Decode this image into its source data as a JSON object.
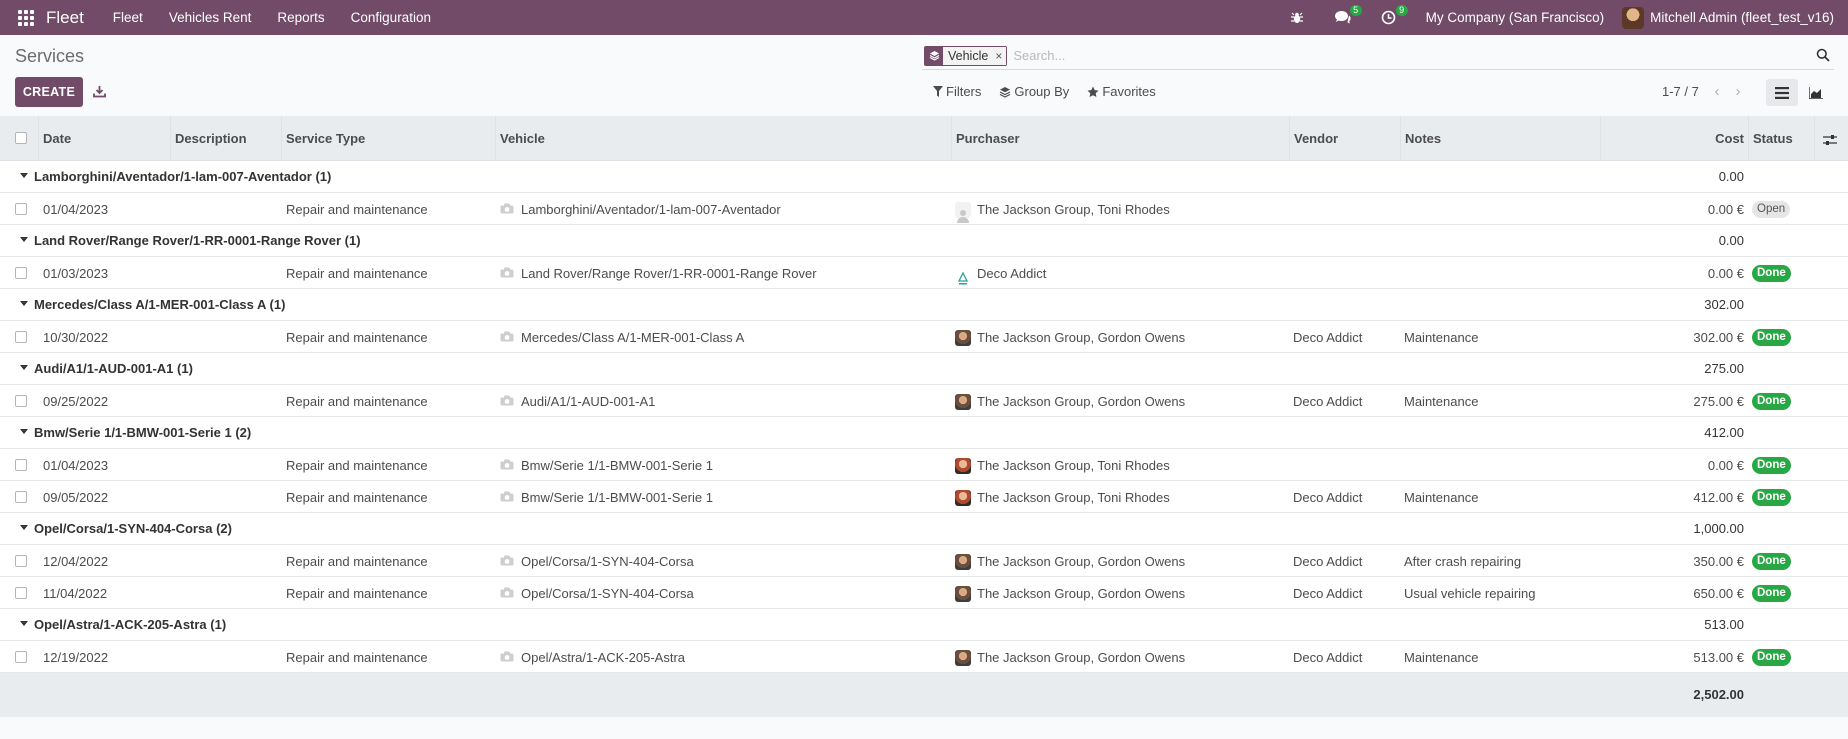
{
  "navbar": {
    "brand": "Fleet",
    "menu": [
      "Fleet",
      "Vehicles Rent",
      "Reports",
      "Configuration"
    ],
    "messages_count": "5",
    "activities_count": "9",
    "company": "My Company (San Francisco)",
    "user": "Mitchell Admin (fleet_test_v16)"
  },
  "control": {
    "title": "Services",
    "create_label": "CREATE",
    "facet_value": "Vehicle",
    "facet_remove": "×",
    "search_placeholder": "Search...",
    "filters_label": "Filters",
    "groupby_label": "Group By",
    "favorites_label": "Favorites",
    "pager": "1-7 / 7"
  },
  "columns": {
    "date": "Date",
    "description": "Description",
    "service_type": "Service Type",
    "vehicle": "Vehicle",
    "purchaser": "Purchaser",
    "vendor": "Vendor",
    "notes": "Notes",
    "cost": "Cost",
    "status": "Status"
  },
  "groups": [
    {
      "title": "Lamborghini/Aventador/1-lam-007-Aventador (1)",
      "total": "0.00",
      "rows": [
        {
          "date": "01/04/2023",
          "description": "",
          "service_type": "Repair and maintenance",
          "vehicle": "Lamborghini/Aventador/1-lam-007-Aventador",
          "purchaser": "The Jackson Group, Toni Rhodes",
          "avatar": "blank",
          "vendor": "",
          "notes": "",
          "cost": "0.00 €",
          "status": "Open",
          "status_kind": "open"
        }
      ]
    },
    {
      "title": "Land Rover/Range Rover/1-RR-0001-Range Rover (1)",
      "total": "0.00",
      "rows": [
        {
          "date": "01/03/2023",
          "description": "",
          "service_type": "Repair and maintenance",
          "vehicle": "Land Rover/Range Rover/1-RR-0001-Range Rover",
          "purchaser": "Deco Addict",
          "avatar": "deco",
          "vendor": "",
          "notes": "",
          "cost": "0.00 €",
          "status": "Done",
          "status_kind": "done"
        }
      ]
    },
    {
      "title": "Mercedes/Class A/1-MER-001-Class A (1)",
      "total": "302.00",
      "rows": [
        {
          "date": "10/30/2022",
          "description": "",
          "service_type": "Repair and maintenance",
          "vehicle": "Mercedes/Class A/1-MER-001-Class A",
          "purchaser": "The Jackson Group, Gordon Owens",
          "avatar": "gordon",
          "vendor": "Deco Addict",
          "notes": "Maintenance",
          "cost": "302.00 €",
          "status": "Done",
          "status_kind": "done"
        }
      ]
    },
    {
      "title": "Audi/A1/1-AUD-001-A1 (1)",
      "total": "275.00",
      "rows": [
        {
          "date": "09/25/2022",
          "description": "",
          "service_type": "Repair and maintenance",
          "vehicle": "Audi/A1/1-AUD-001-A1",
          "purchaser": "The Jackson Group, Gordon Owens",
          "avatar": "gordon",
          "vendor": "Deco Addict",
          "notes": "Maintenance",
          "cost": "275.00 €",
          "status": "Done",
          "status_kind": "done"
        }
      ]
    },
    {
      "title": "Bmw/Serie 1/1-BMW-001-Serie 1 (2)",
      "total": "412.00",
      "rows": [
        {
          "date": "01/04/2023",
          "description": "",
          "service_type": "Repair and maintenance",
          "vehicle": "Bmw/Serie 1/1-BMW-001-Serie 1",
          "purchaser": "The Jackson Group, Toni Rhodes",
          "avatar": "toni",
          "vendor": "",
          "notes": "",
          "cost": "0.00 €",
          "status": "Done",
          "status_kind": "done"
        },
        {
          "date": "09/05/2022",
          "description": "",
          "service_type": "Repair and maintenance",
          "vehicle": "Bmw/Serie 1/1-BMW-001-Serie 1",
          "purchaser": "The Jackson Group, Toni Rhodes",
          "avatar": "toni",
          "vendor": "Deco Addict",
          "notes": "Maintenance",
          "cost": "412.00 €",
          "status": "Done",
          "status_kind": "done"
        }
      ]
    },
    {
      "title": "Opel/Corsa/1-SYN-404-Corsa (2)",
      "total": "1,000.00",
      "rows": [
        {
          "date": "12/04/2022",
          "description": "",
          "service_type": "Repair and maintenance",
          "vehicle": "Opel/Corsa/1-SYN-404-Corsa",
          "purchaser": "The Jackson Group, Gordon Owens",
          "avatar": "gordon",
          "vendor": "Deco Addict",
          "notes": "After crash repairing",
          "cost": "350.00 €",
          "status": "Done",
          "status_kind": "done"
        },
        {
          "date": "11/04/2022",
          "description": "",
          "service_type": "Repair and maintenance",
          "vehicle": "Opel/Corsa/1-SYN-404-Corsa",
          "purchaser": "The Jackson Group, Gordon Owens",
          "avatar": "gordon",
          "vendor": "Deco Addict",
          "notes": "Usual vehicle repairing",
          "cost": "650.00 €",
          "status": "Done",
          "status_kind": "done"
        }
      ]
    },
    {
      "title": "Opel/Astra/1-ACK-205-Astra (1)",
      "total": "513.00",
      "rows": [
        {
          "date": "12/19/2022",
          "description": "",
          "service_type": "Repair and maintenance",
          "vehicle": "Opel/Astra/1-ACK-205-Astra",
          "purchaser": "The Jackson Group, Gordon Owens",
          "avatar": "gordon",
          "vendor": "Deco Addict",
          "notes": "Maintenance",
          "cost": "513.00 €",
          "status": "Done",
          "status_kind": "done"
        }
      ]
    }
  ],
  "footer": {
    "grand_total": "2,502.00"
  },
  "colors": {
    "brand": "#714b67",
    "done": "#28a745",
    "header_bg": "#e9ecef"
  }
}
